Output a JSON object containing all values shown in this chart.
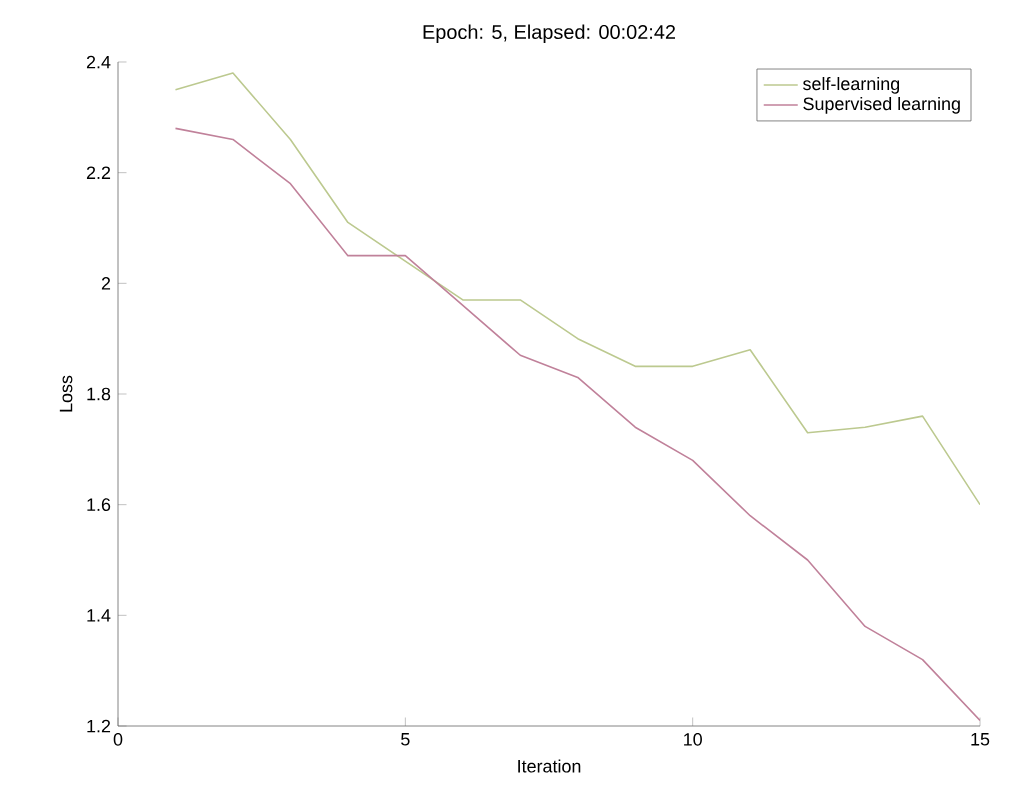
{
  "chart_data": {
    "type": "line",
    "title": "Epoch: 5, Elapsed: 00:02:42",
    "xlabel": "Iteration",
    "ylabel": "Loss",
    "x": [
      1,
      2,
      3,
      4,
      5,
      6,
      7,
      8,
      9,
      10,
      11,
      12,
      13,
      14,
      15
    ],
    "series": [
      {
        "name": "self-learning",
        "color": "#bcc98f",
        "values": [
          2.35,
          2.38,
          2.26,
          2.11,
          2.04,
          1.97,
          1.97,
          1.9,
          1.85,
          1.85,
          1.88,
          1.73,
          1.74,
          1.76,
          1.6
        ]
      },
      {
        "name": "Supervised learning",
        "color": "#c0819a",
        "values": [
          2.28,
          2.26,
          2.18,
          2.05,
          2.05,
          1.96,
          1.87,
          1.83,
          1.74,
          1.68,
          1.58,
          1.5,
          1.38,
          1.32,
          1.21
        ]
      }
    ],
    "xlim": [
      0,
      15
    ],
    "xticks": [
      0,
      5,
      10,
      15
    ],
    "ylim": [
      1.2,
      2.4
    ],
    "yticks": [
      1.2,
      1.4,
      1.6,
      1.8,
      2,
      2.2,
      2.4
    ],
    "legend": "top right",
    "grid": false,
    "marker": "none",
    "line_style": "solid"
  }
}
